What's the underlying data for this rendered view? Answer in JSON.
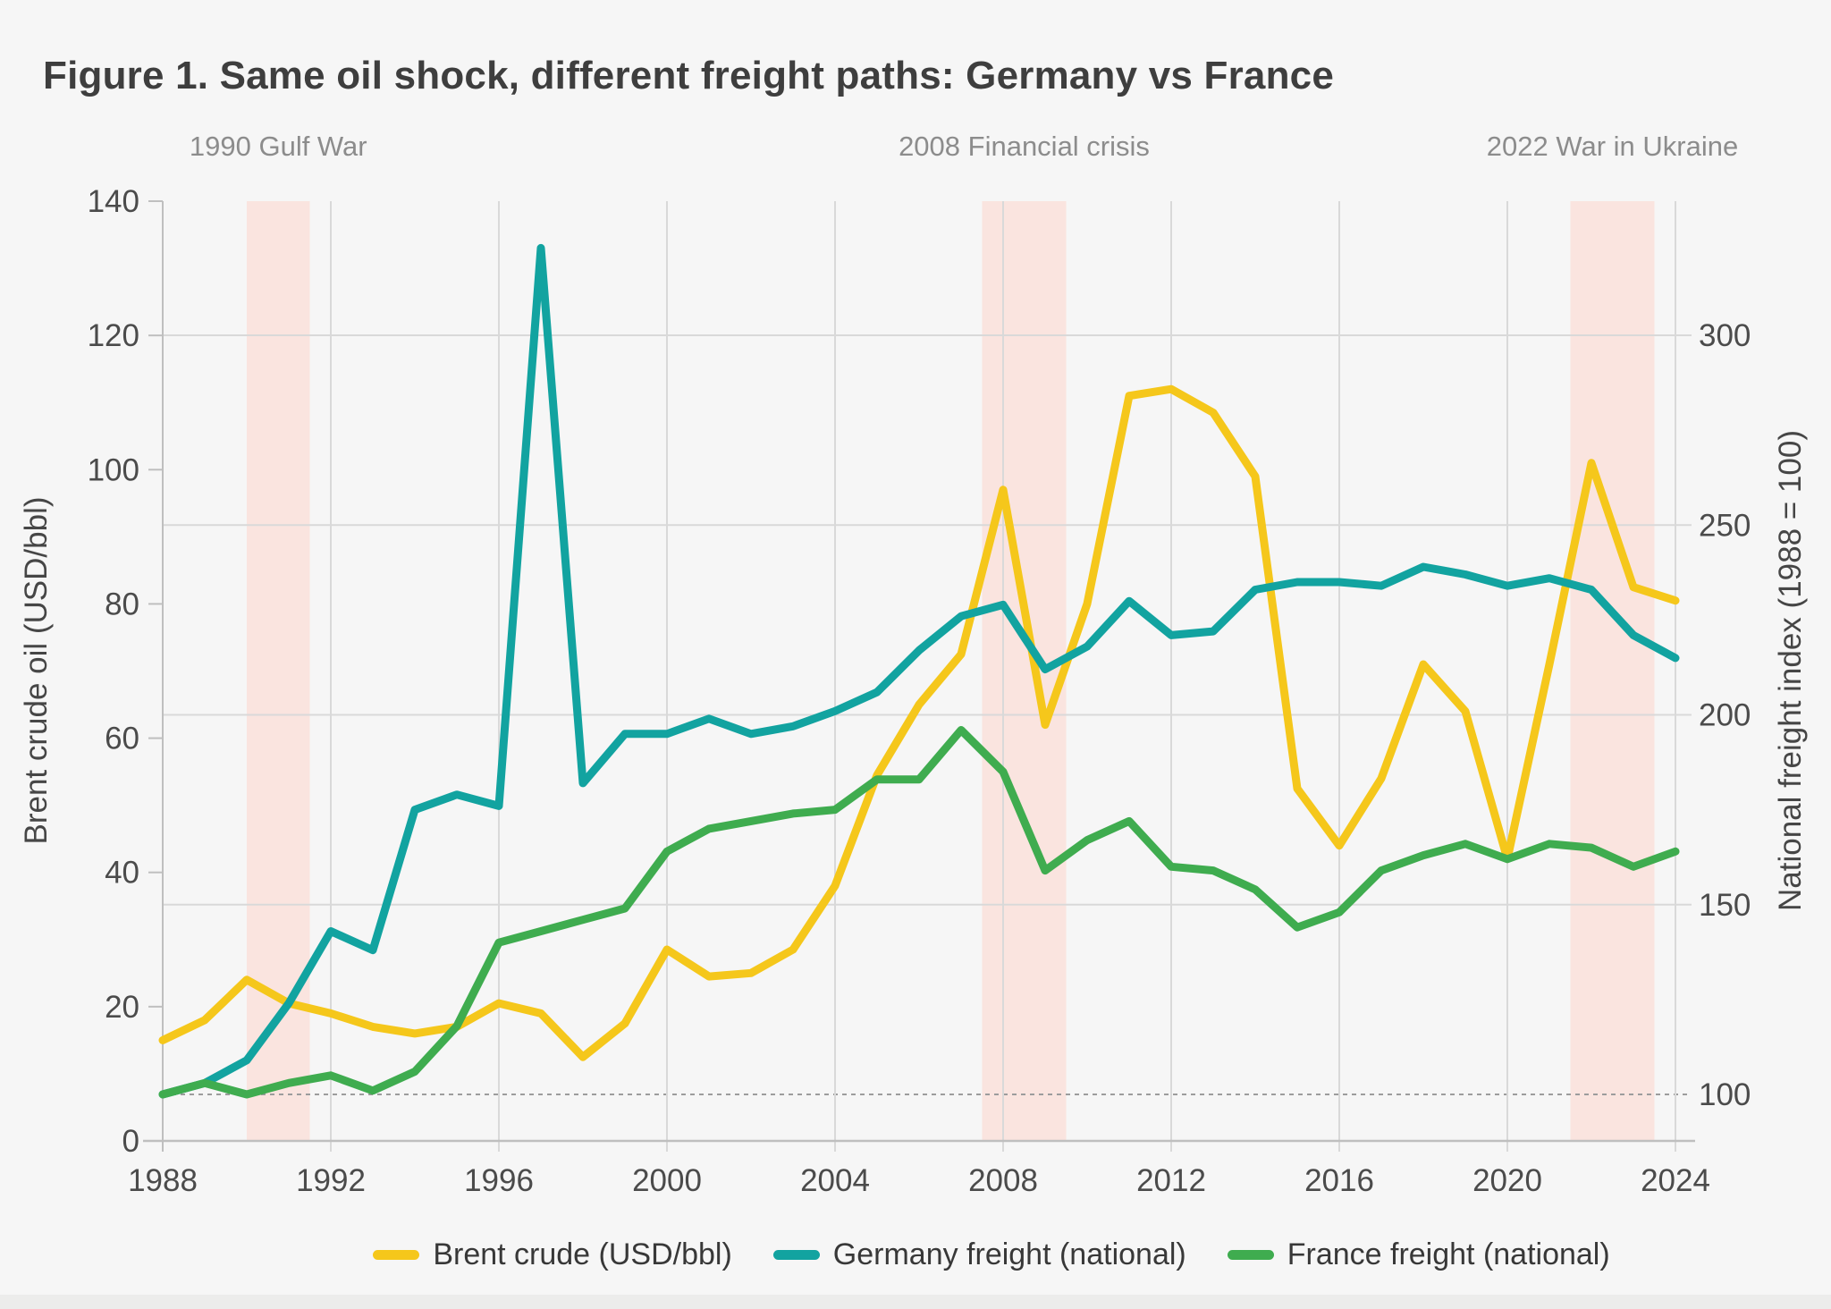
{
  "page": {
    "title": "Figure 1. Same oil shock, different freight paths: Germany vs France"
  },
  "chart_data": {
    "type": "line",
    "title": "Figure 1. Same oil shock, different freight paths: Germany vs France",
    "x": [
      1988,
      1989,
      1990,
      1991,
      1992,
      1993,
      1994,
      1995,
      1996,
      1997,
      1998,
      1999,
      2000,
      2001,
      2002,
      2003,
      2004,
      2005,
      2006,
      2007,
      2008,
      2009,
      2010,
      2011,
      2012,
      2013,
      2014,
      2015,
      2016,
      2017,
      2018,
      2019,
      2020,
      2021,
      2022,
      2023,
      2024
    ],
    "series": [
      {
        "id": "brent-crude",
        "name": "Brent crude (USD/bbl)",
        "axis": "left",
        "color": "#F5C71B",
        "values": [
          15,
          18,
          24,
          20.5,
          19,
          17,
          16,
          17,
          20.5,
          19,
          12.5,
          17.5,
          28.5,
          24.5,
          25,
          28.5,
          38,
          54.5,
          65,
          72.5,
          97,
          62,
          80,
          111,
          112,
          108.5,
          99,
          52.5,
          44,
          54,
          71,
          64,
          42,
          71,
          101,
          82.5,
          80.5
        ]
      },
      {
        "id": "germany-freight",
        "name": "Germany freight (national)",
        "axis": "right",
        "color": "#12A3A0",
        "values": [
          100,
          103,
          109,
          124,
          143,
          138,
          175,
          179,
          176,
          323,
          182,
          195,
          195,
          199,
          195,
          197,
          201,
          206,
          217,
          226,
          229,
          212,
          218,
          230,
          221,
          222,
          233,
          235,
          235,
          234,
          239,
          237,
          234,
          236,
          233,
          221,
          215
        ]
      },
      {
        "id": "france-freight",
        "name": "France freight (national)",
        "axis": "right",
        "color": "#3FAC4F",
        "values": [
          100,
          103,
          100,
          103,
          105,
          101,
          106,
          118,
          140,
          143,
          146,
          149,
          164,
          170,
          172,
          174,
          175,
          183,
          183,
          196,
          185,
          159,
          167,
          172,
          160,
          159,
          154,
          144,
          148,
          159,
          163,
          166,
          162,
          166,
          165,
          160,
          164
        ]
      }
    ],
    "left_axis": {
      "title": "Brent crude oil (USD/bbl)",
      "min": 0,
      "max": 140,
      "ticks": [
        0,
        20,
        40,
        60,
        80,
        100,
        120,
        140
      ]
    },
    "right_axis": {
      "title": "National freight index (1988 = 100)",
      "min": 87.75,
      "max": 335.35,
      "baseline": 100,
      "ticks": [
        100,
        150,
        200,
        250,
        300
      ]
    },
    "x_axis": {
      "min": 1988,
      "max": 2024,
      "ticks": [
        1988,
        1992,
        1996,
        2000,
        2004,
        2008,
        2012,
        2016,
        2020,
        2024
      ]
    },
    "bands": [
      {
        "from": 1990,
        "to": 1991.5,
        "label": "1990 Gulf War"
      },
      {
        "from": 2007.5,
        "to": 2009.5,
        "label": "2008 Financial crisis"
      },
      {
        "from": 2021.5,
        "to": 2023.5,
        "label": "2022 War in Ukraine"
      }
    ],
    "grid": true,
    "legend_position": "bottom",
    "style": {
      "background": "#F6F6F6",
      "band_fill": "#FAE4DF",
      "grid_color": "#D9D9D9",
      "axis_line_color": "#BFBFBF",
      "baseline_dash_color": "#9C9C9C",
      "tick_text_color": "#4B4B4B",
      "axis_title_color": "#464646",
      "annotation_text_color": "#8C8C8C",
      "title_text_color": "#3E3E3E",
      "legend_text_color": "#383838",
      "line_width": 9
    }
  }
}
